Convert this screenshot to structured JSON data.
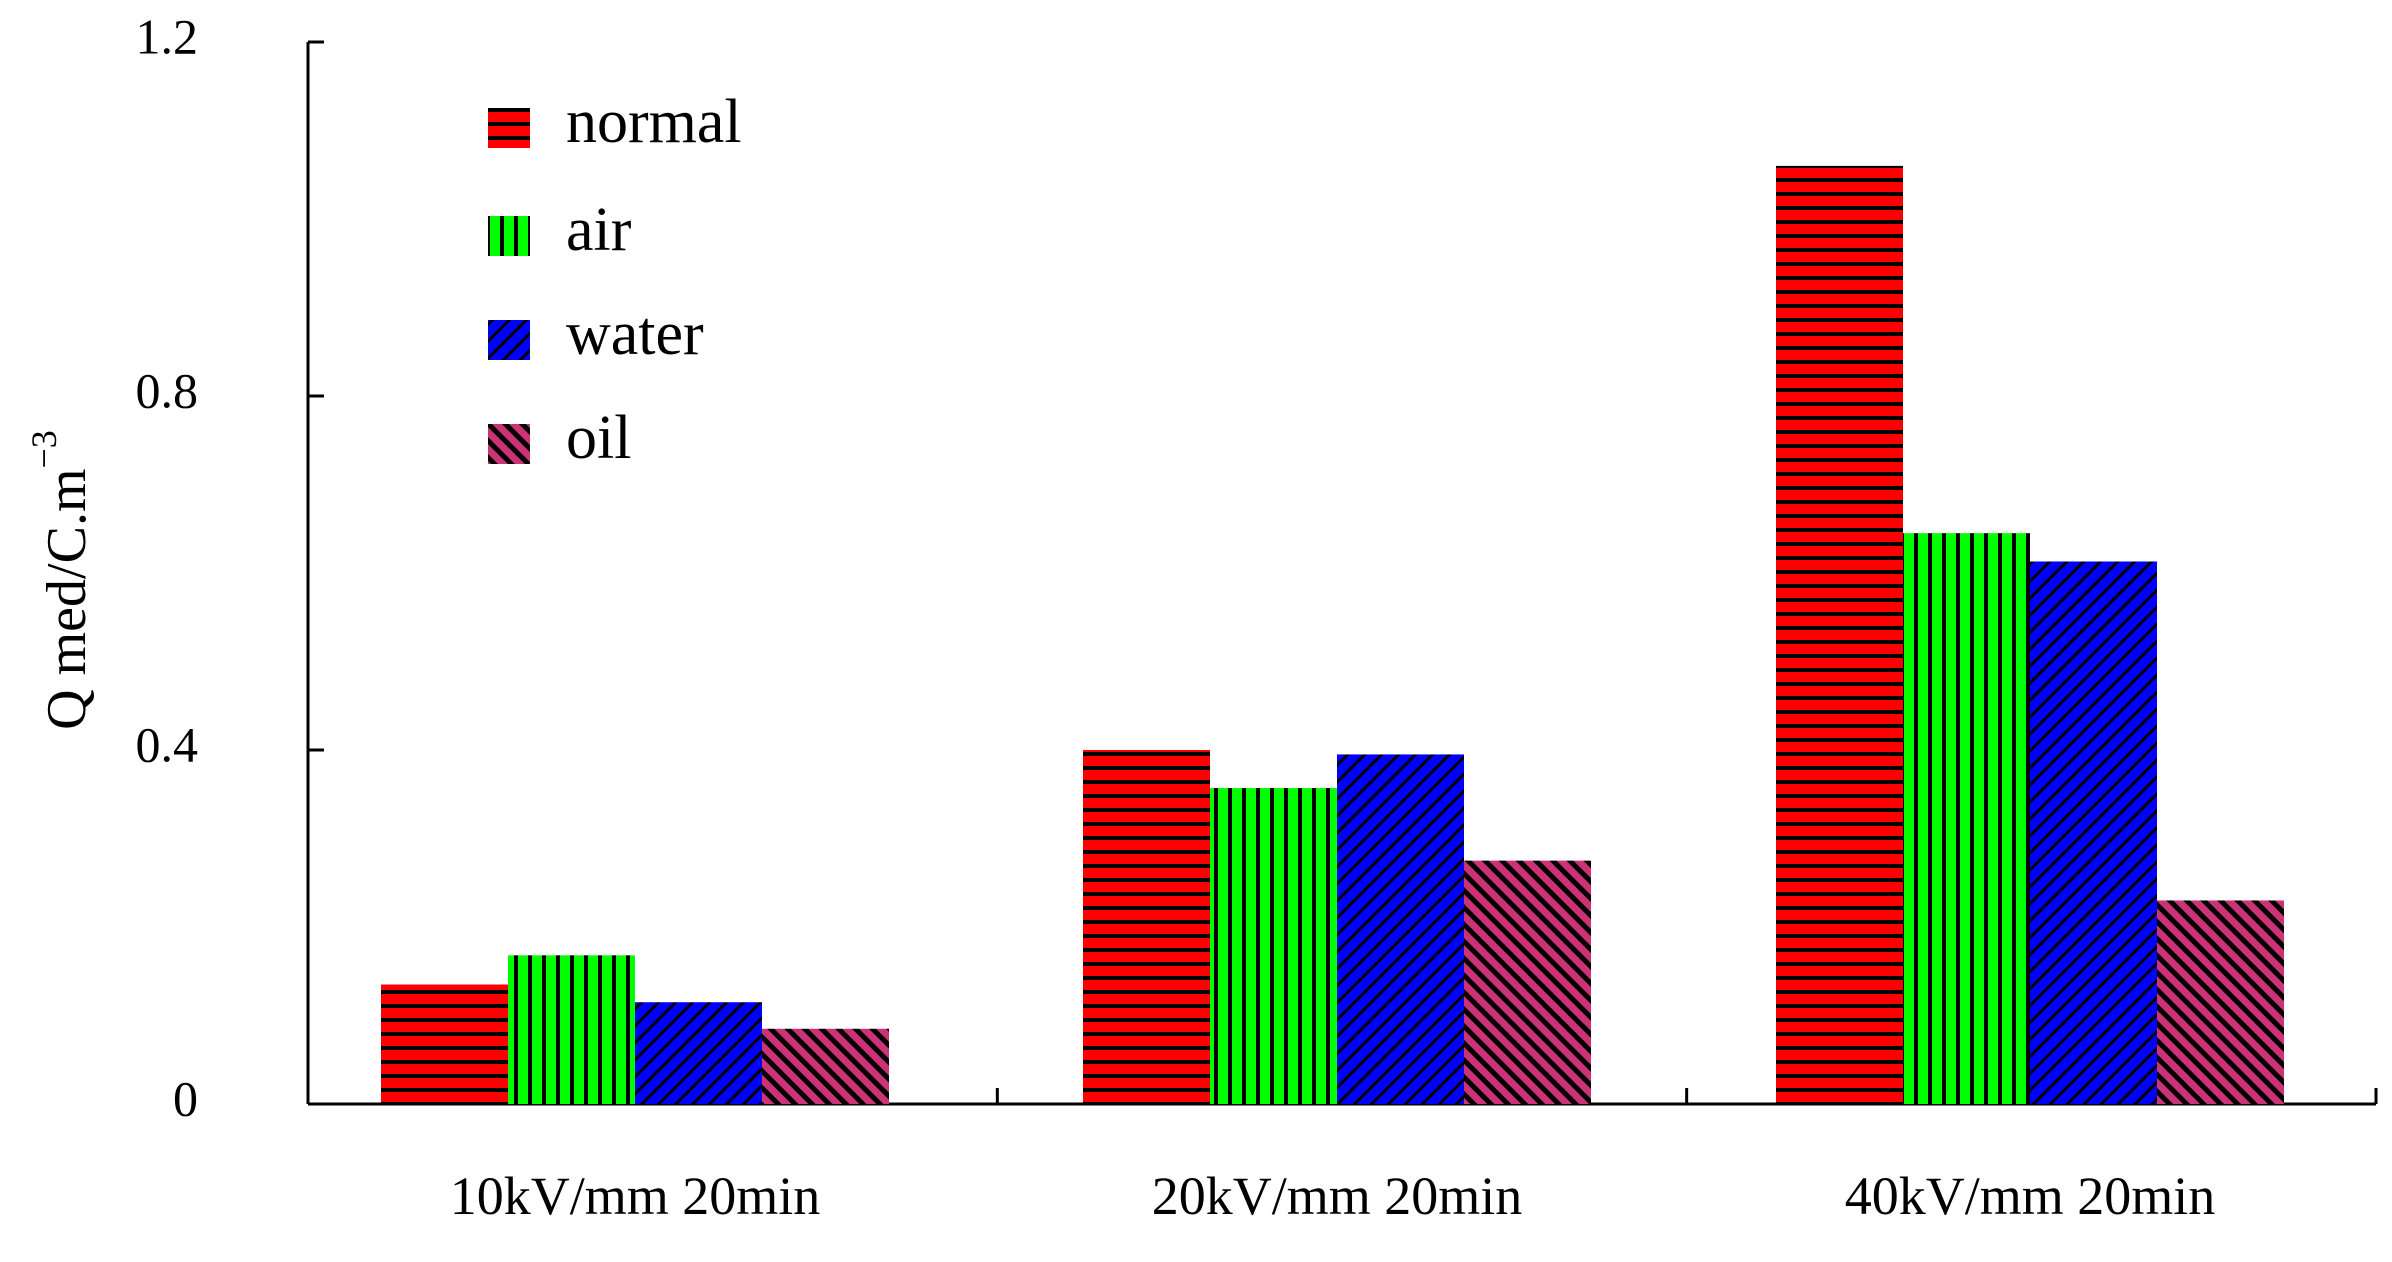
{
  "chart_data": {
    "type": "bar",
    "categories": [
      "10kV/mm 20min",
      "20kV/mm 20min",
      "40kV/mm 20min"
    ],
    "series": [
      {
        "name": "normal",
        "values": [
          0.135,
          0.4,
          1.06
        ],
        "color": "#ff0000",
        "pattern": "horizontal"
      },
      {
        "name": "air",
        "values": [
          0.168,
          0.357,
          0.645
        ],
        "color": "#00ff00",
        "pattern": "vertical"
      },
      {
        "name": "water",
        "values": [
          0.115,
          0.395,
          0.613
        ],
        "color": "#0000ff",
        "pattern": "diagonal-up"
      },
      {
        "name": "oil",
        "values": [
          0.085,
          0.275,
          0.23
        ],
        "color": "#cc3377",
        "pattern": "diagonal-down"
      }
    ],
    "ylabel": "Q med/C.m",
    "ylabel_superscript": "−3",
    "ylim": [
      0,
      1.2
    ],
    "yticks": [
      0,
      0.4,
      0.8,
      1.2
    ],
    "ytick_labels": [
      "0",
      "0.4",
      "0.8",
      "1.2"
    ],
    "legend_position": "top-left",
    "grid": false
  }
}
